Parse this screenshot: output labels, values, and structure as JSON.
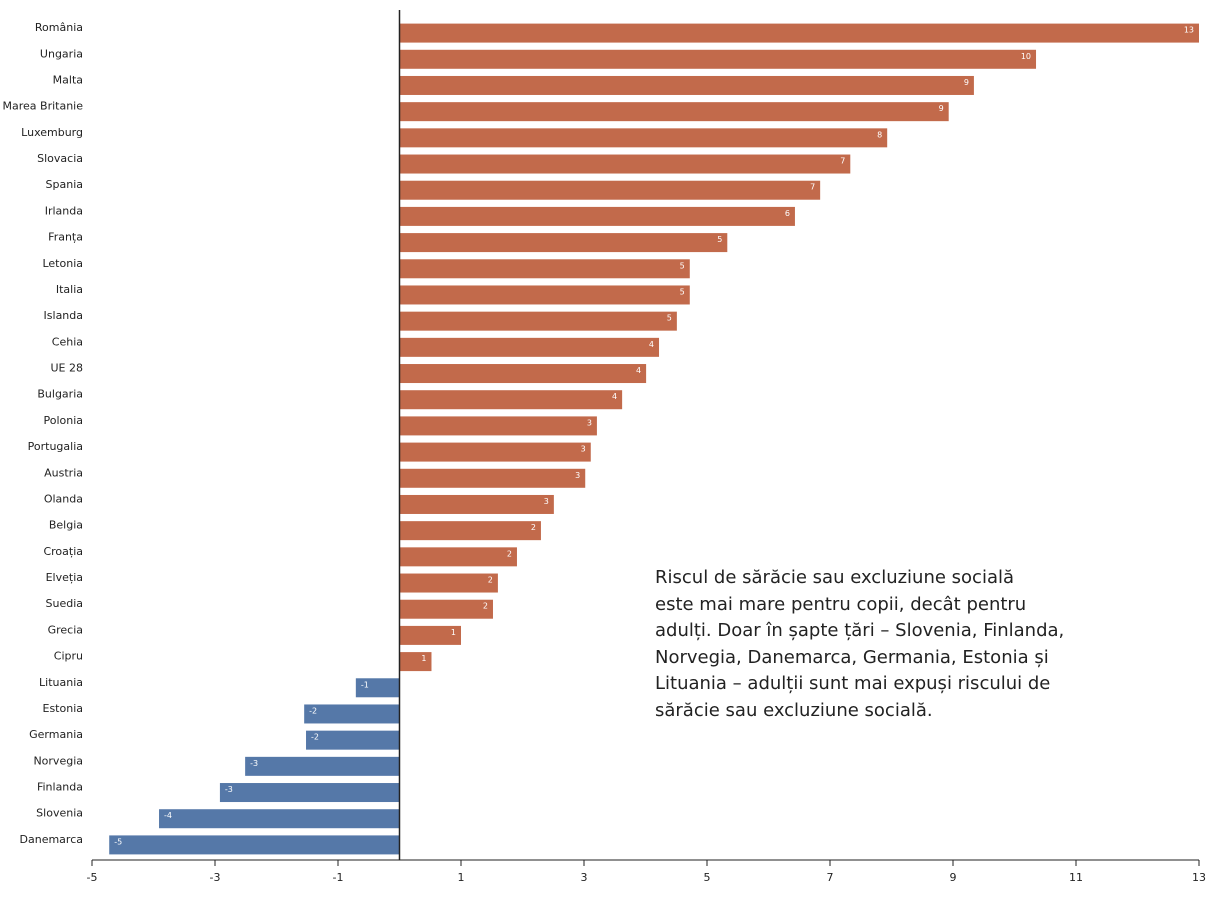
{
  "chart_data": {
    "type": "bar",
    "orientation": "horizontal",
    "categories": [
      "România",
      "Ungaria",
      "Malta",
      "Marea Britanie",
      "Luxemburg",
      "Slovacia",
      "Spania",
      "Irlanda",
      "Franța",
      "Letonia",
      "Italia",
      "Islanda",
      "Cehia",
      "UE 28",
      "Bulgaria",
      "Polonia",
      "Portugalia",
      "Austria",
      "Olanda",
      "Belgia",
      "Croația",
      "Elveția",
      "Suedia",
      "Grecia",
      "Cipru",
      "Lituania",
      "Estonia",
      "Germania",
      "Norvegia",
      "Finlanda",
      "Slovenia",
      "Danemarca"
    ],
    "values": [
      13,
      10.35,
      9.34,
      8.93,
      7.93,
      7.33,
      6.84,
      6.43,
      5.33,
      4.72,
      4.72,
      4.51,
      4.22,
      4.01,
      3.62,
      3.21,
      3.11,
      3.02,
      2.51,
      2.3,
      1.91,
      1.6,
      1.52,
      1.0,
      0.52,
      -0.71,
      -1.55,
      -1.52,
      -2.51,
      -2.92,
      -3.91,
      -4.72
    ],
    "value_labels": [
      "13",
      "10",
      "9",
      "9",
      "8",
      "7",
      "7",
      "6",
      "5",
      "5",
      "5",
      "5",
      "4",
      "4",
      "4",
      "3",
      "3",
      "3",
      "3",
      "2",
      "2",
      "2",
      "2",
      "1",
      "1",
      "-1",
      "-2",
      "-2",
      "-3",
      "-3",
      "-4",
      "-5"
    ],
    "color": "#c26a4b",
    "negative_color": "#5578a8",
    "xlim": [
      -5,
      13
    ],
    "xticks": [
      -5,
      -3,
      -1,
      1,
      3,
      5,
      7,
      9,
      11,
      13
    ],
    "annotation": [
      "Riscul de sărăcie sau excluziune socială",
      "este mai mare pentru copii, decât pentru",
      "adulți. Doar în șapte țări – Slovenia, Finlanda,",
      "Norvegia, Danemarca, Germania, Estonia și",
      "Lituania – adulții sunt mai expuși riscului de",
      "sărăcie sau excluziune socială."
    ]
  }
}
